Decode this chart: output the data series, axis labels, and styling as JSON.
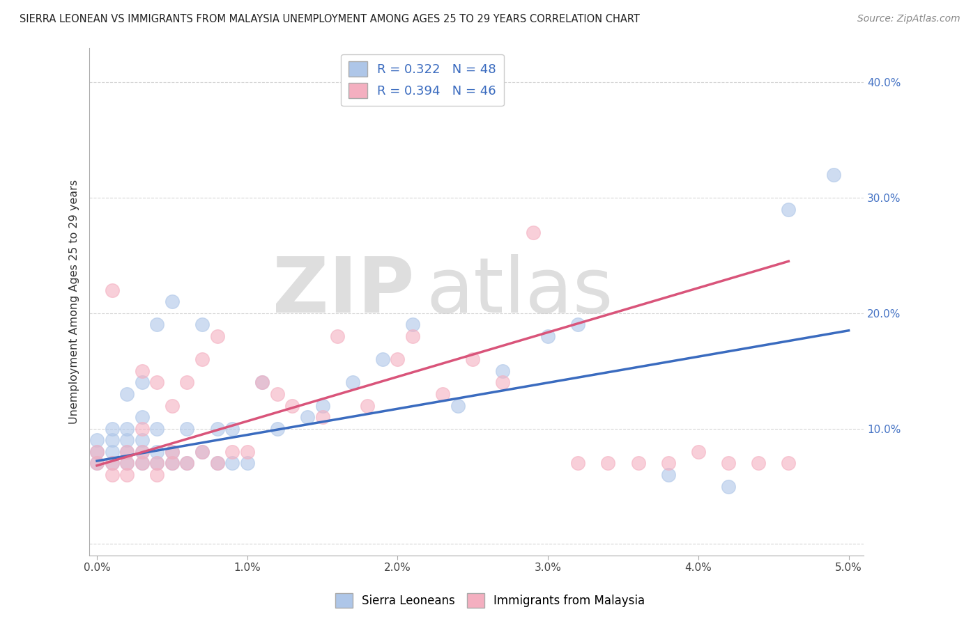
{
  "title": "SIERRA LEONEAN VS IMMIGRANTS FROM MALAYSIA UNEMPLOYMENT AMONG AGES 25 TO 29 YEARS CORRELATION CHART",
  "source": "Source: ZipAtlas.com",
  "ylabel": "Unemployment Among Ages 25 to 29 years",
  "xlim": [
    -0.0005,
    0.051
  ],
  "ylim": [
    -0.01,
    0.43
  ],
  "xticks": [
    0.0,
    0.01,
    0.02,
    0.03,
    0.04,
    0.05
  ],
  "xticklabels": [
    "0.0%",
    "1.0%",
    "2.0%",
    "3.0%",
    "4.0%",
    "5.0%"
  ],
  "yticks": [
    0.0,
    0.1,
    0.2,
    0.3,
    0.4
  ],
  "yticklabels": [
    "",
    "10.0%",
    "20.0%",
    "30.0%",
    "40.0%"
  ],
  "blue_color": "#aec6e8",
  "pink_color": "#f4afc0",
  "trend_blue": "#3a6bbf",
  "trend_pink": "#d9547a",
  "watermark_zip": "ZIP",
  "watermark_atlas": "atlas",
  "blue_scatter_x": [
    0.0,
    0.0,
    0.0,
    0.001,
    0.001,
    0.001,
    0.001,
    0.002,
    0.002,
    0.002,
    0.002,
    0.002,
    0.003,
    0.003,
    0.003,
    0.003,
    0.003,
    0.004,
    0.004,
    0.004,
    0.004,
    0.005,
    0.005,
    0.005,
    0.006,
    0.006,
    0.007,
    0.007,
    0.008,
    0.008,
    0.009,
    0.009,
    0.01,
    0.011,
    0.012,
    0.014,
    0.015,
    0.017,
    0.019,
    0.021,
    0.024,
    0.027,
    0.03,
    0.032,
    0.038,
    0.042,
    0.046,
    0.049
  ],
  "blue_scatter_y": [
    0.07,
    0.08,
    0.09,
    0.07,
    0.08,
    0.09,
    0.1,
    0.07,
    0.08,
    0.09,
    0.1,
    0.13,
    0.07,
    0.08,
    0.09,
    0.11,
    0.14,
    0.07,
    0.08,
    0.1,
    0.19,
    0.07,
    0.08,
    0.21,
    0.07,
    0.1,
    0.08,
    0.19,
    0.07,
    0.1,
    0.07,
    0.1,
    0.07,
    0.14,
    0.1,
    0.11,
    0.12,
    0.14,
    0.16,
    0.19,
    0.12,
    0.15,
    0.18,
    0.19,
    0.06,
    0.05,
    0.29,
    0.32
  ],
  "pink_scatter_x": [
    0.0,
    0.0,
    0.001,
    0.001,
    0.001,
    0.002,
    0.002,
    0.002,
    0.003,
    0.003,
    0.003,
    0.003,
    0.004,
    0.004,
    0.004,
    0.005,
    0.005,
    0.005,
    0.006,
    0.006,
    0.007,
    0.007,
    0.008,
    0.008,
    0.009,
    0.01,
    0.011,
    0.012,
    0.013,
    0.015,
    0.016,
    0.018,
    0.02,
    0.021,
    0.023,
    0.025,
    0.027,
    0.029,
    0.032,
    0.034,
    0.036,
    0.038,
    0.04,
    0.042,
    0.044,
    0.046
  ],
  "pink_scatter_y": [
    0.07,
    0.08,
    0.06,
    0.07,
    0.22,
    0.06,
    0.07,
    0.08,
    0.07,
    0.08,
    0.1,
    0.15,
    0.06,
    0.07,
    0.14,
    0.07,
    0.08,
    0.12,
    0.07,
    0.14,
    0.08,
    0.16,
    0.07,
    0.18,
    0.08,
    0.08,
    0.14,
    0.13,
    0.12,
    0.11,
    0.18,
    0.12,
    0.16,
    0.18,
    0.13,
    0.16,
    0.14,
    0.27,
    0.07,
    0.07,
    0.07,
    0.07,
    0.08,
    0.07,
    0.07,
    0.07
  ],
  "blue_trend_x": [
    0.0,
    0.05
  ],
  "blue_trend_y": [
    0.072,
    0.185
  ],
  "pink_trend_x": [
    0.0,
    0.046
  ],
  "pink_trend_y": [
    0.068,
    0.245
  ],
  "background": "#ffffff",
  "grid_color": "#cccccc"
}
